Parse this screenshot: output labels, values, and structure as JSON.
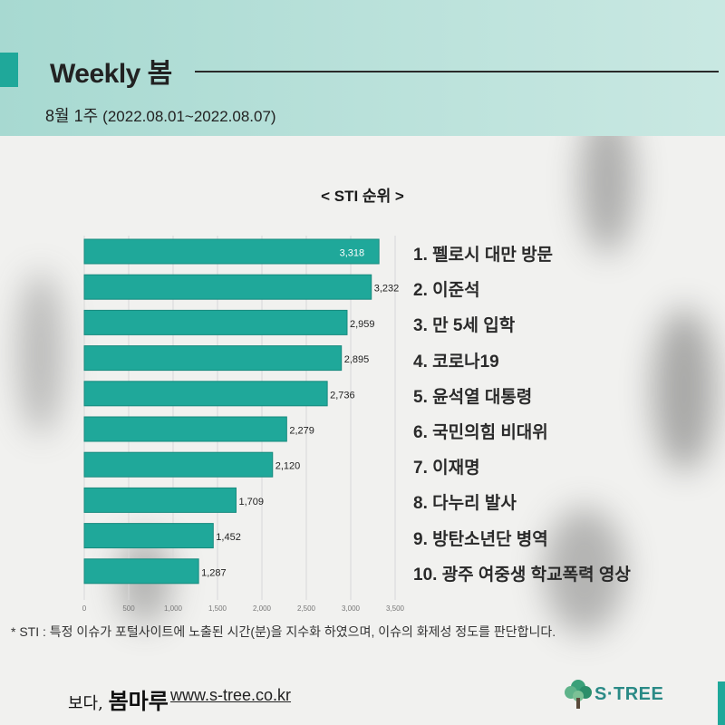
{
  "header": {
    "title": "Weekly 봄",
    "week": "8월 1주",
    "dates": "(2022.08.01~2022.08.07)"
  },
  "chart_data": {
    "type": "bar",
    "orientation": "horizontal",
    "title": "< STI 순위 >",
    "categories": [
      "1. 펠로시 대만 방문",
      "2. 이준석",
      "3. 만 5세 입학",
      "4. 코로나19",
      "5. 윤석열 대통령",
      "6. 국민의힘 비대위",
      "7. 이재명",
      "8. 다누리 발사",
      "9. 방탄소년단 병역",
      "10. 광주 여중생 학교폭력 영상"
    ],
    "values": [
      3318,
      3232,
      2959,
      2895,
      2736,
      2279,
      2120,
      1709,
      1452,
      1287
    ],
    "value_labels": [
      "3,318",
      "3,232",
      "2,959",
      "2,895",
      "2,736",
      "2,279",
      "2,120",
      "1,709",
      "1,452",
      "1,287"
    ],
    "xlim": [
      0,
      3500
    ],
    "x_ticks": [
      0,
      500,
      1000,
      1500,
      2000,
      2500,
      3000,
      3500
    ],
    "x_tick_labels": [
      "0",
      "500",
      "1,000",
      "1,500",
      "2,000",
      "2,500",
      "3,000",
      "3,500"
    ],
    "grid": true,
    "bar_color": "#1fa89a"
  },
  "footnote": "* STI : 특정 이슈가 포털사이트에 노출된 시간(분)을 지수화 하였으며, 이슈의 화제성 정도를 판단합니다.",
  "footer": {
    "logo_prefix": "보다,",
    "logo_main": "봄마루",
    "url": "www.s-tree.co.kr",
    "brand": "S·TREE"
  },
  "colors": {
    "accent": "#1fa89a",
    "header_bg": "#b3dfd8"
  }
}
